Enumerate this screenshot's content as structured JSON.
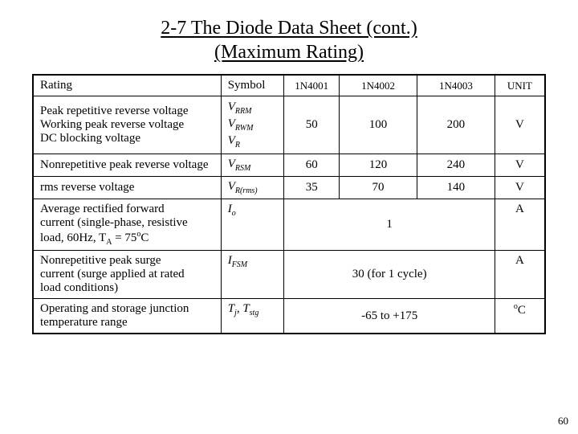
{
  "title": {
    "line1": "2-7 The Diode Data Sheet  (cont.)",
    "line2": "(Maximum Rating)"
  },
  "headers": {
    "rating": "Rating",
    "symbol": "Symbol",
    "c1": "1N4001",
    "c2": "1N4002",
    "c3": "1N4003",
    "unit": "UNIT"
  },
  "rows": {
    "r1": {
      "l1": "Peak repetitive reverse voltage",
      "l2": "Working peak reverse voltage",
      "l3": "DC blocking voltage",
      "s1a": "V",
      "s1b": "RRM",
      "s2a": "V",
      "s2b": "RWM",
      "s3a": "V",
      "s3b": "R",
      "v1": "50",
      "v2": "100",
      "v3": "200",
      "unit": "V"
    },
    "r2": {
      "label": "Nonrepetitive peak reverse voltage",
      "sa": "V",
      "sb": "RSM",
      "v1": "60",
      "v2": "120",
      "v3": "240",
      "unit": "V"
    },
    "r3": {
      "label": "rms reverse voltage",
      "sa": "V",
      "sb": "R(rms)",
      "v1": "35",
      "v2": "70",
      "v3": "140",
      "unit": "V"
    },
    "r4": {
      "l1": "Average rectified forward",
      "l2": " current (single-phase, resistive",
      "l3": " load, 60Hz, T",
      "l3sub": "A",
      "l3b": " = 75",
      "l3sup": "o",
      "l3c": "C",
      "sa": "I",
      "sb": "o",
      "vmerged": "1",
      "unit": "A"
    },
    "r5": {
      "l1": "Nonrepetitive peak surge",
      "l2": " current (surge applied at rated",
      "l3": " load conditions)",
      "sa": "I",
      "sb": "FSM",
      "vmerged": "30 (for 1 cycle)",
      "unit": "A"
    },
    "r6": {
      "l1": "Operating and storage junction",
      "l2": " temperature range",
      "s1a": "T",
      "s1b": "j",
      "sep": ", ",
      "s2a": "T",
      "s2b": "stg",
      "vmerged": "-65 to +175",
      "usup": "o",
      "ub": "C"
    }
  },
  "page_number": "60"
}
